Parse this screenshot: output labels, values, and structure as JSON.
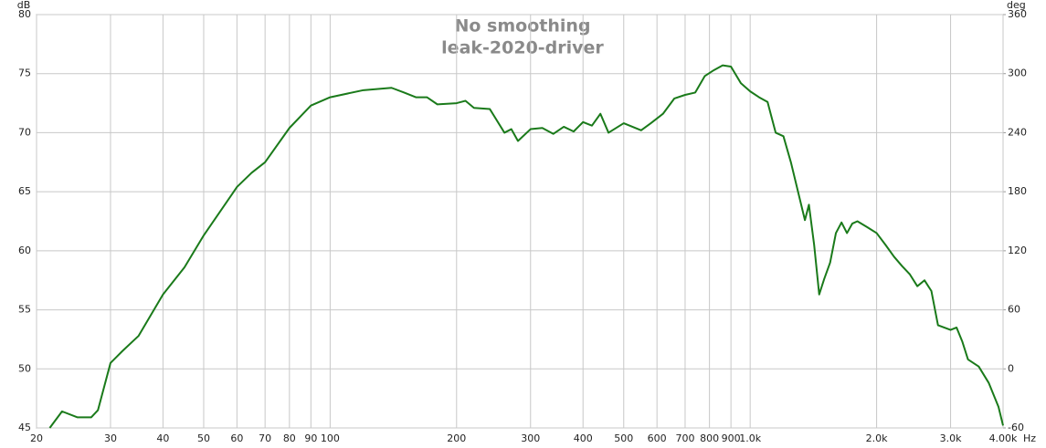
{
  "chart_data": {
    "type": "line",
    "title": "No smoothing",
    "subtitle": "leak-2020-driver",
    "x_label": "Hz",
    "y_label": "dB",
    "y2_label": "deg",
    "log_x": true,
    "grid": true,
    "x": [
      21.5,
      23,
      25,
      27,
      28,
      30,
      32,
      35,
      40,
      45,
      50,
      60,
      65,
      70,
      80,
      90,
      100,
      120,
      140,
      150,
      160,
      170,
      180,
      200,
      210,
      220,
      240,
      260,
      270,
      280,
      300,
      320,
      340,
      360,
      380,
      400,
      420,
      440,
      460,
      500,
      550,
      580,
      620,
      660,
      700,
      740,
      780,
      820,
      860,
      900,
      950,
      1000,
      1050,
      1100,
      1150,
      1200,
      1250,
      1300,
      1350,
      1380,
      1420,
      1460,
      1500,
      1550,
      1600,
      1650,
      1700,
      1750,
      1800,
      1900,
      2000,
      2100,
      2200,
      2300,
      2400,
      2500,
      2600,
      2700,
      2800,
      3000,
      3100,
      3200,
      3300,
      3500,
      3700,
      3900,
      4000
    ],
    "series": [
      {
        "name": "leak-2020-driver",
        "color": "#1a7a1a",
        "values": [
          45.0,
          46.4,
          45.9,
          45.9,
          46.5,
          50.5,
          51.5,
          52.8,
          56.3,
          58.6,
          61.3,
          65.4,
          66.6,
          67.5,
          70.4,
          72.3,
          73.0,
          73.6,
          73.8,
          73.4,
          73.0,
          73.0,
          72.4,
          72.5,
          72.7,
          72.1,
          72.0,
          70.0,
          70.3,
          69.3,
          70.3,
          70.4,
          69.9,
          70.5,
          70.1,
          70.9,
          70.6,
          71.6,
          70.0,
          70.8,
          70.2,
          70.8,
          71.6,
          72.9,
          73.2,
          73.4,
          74.8,
          75.3,
          75.7,
          75.6,
          74.2,
          73.5,
          73.0,
          72.6,
          70.0,
          69.7,
          67.5,
          65.0,
          62.6,
          63.9,
          60.5,
          56.3,
          57.6,
          59.0,
          61.5,
          62.4,
          61.5,
          62.3,
          62.5,
          62.0,
          61.5,
          60.5,
          59.5,
          58.7,
          58.0,
          57.0,
          57.5,
          56.6,
          53.7,
          53.3,
          53.5,
          52.3,
          50.8,
          50.2,
          48.8,
          46.8,
          45.2
        ]
      }
    ],
    "xlim": [
      20,
      4000
    ],
    "xticks": [
      20,
      30,
      40,
      50,
      60,
      70,
      80,
      90,
      100,
      200,
      300,
      400,
      500,
      600,
      700,
      800,
      900,
      {
        "value": 1000,
        "label": "1.0k"
      },
      {
        "value": 2000,
        "label": "2.0k"
      },
      {
        "value": 3000,
        "label": "3.0k"
      },
      {
        "value": 4000,
        "label": "4.00k"
      }
    ],
    "ylim": [
      45,
      80
    ],
    "yticks": [
      45,
      50,
      55,
      60,
      65,
      70,
      75,
      80
    ],
    "y2lim": [
      -60,
      360
    ],
    "y2ticks": [
      -60,
      0,
      60,
      120,
      180,
      240,
      300,
      360
    ]
  }
}
